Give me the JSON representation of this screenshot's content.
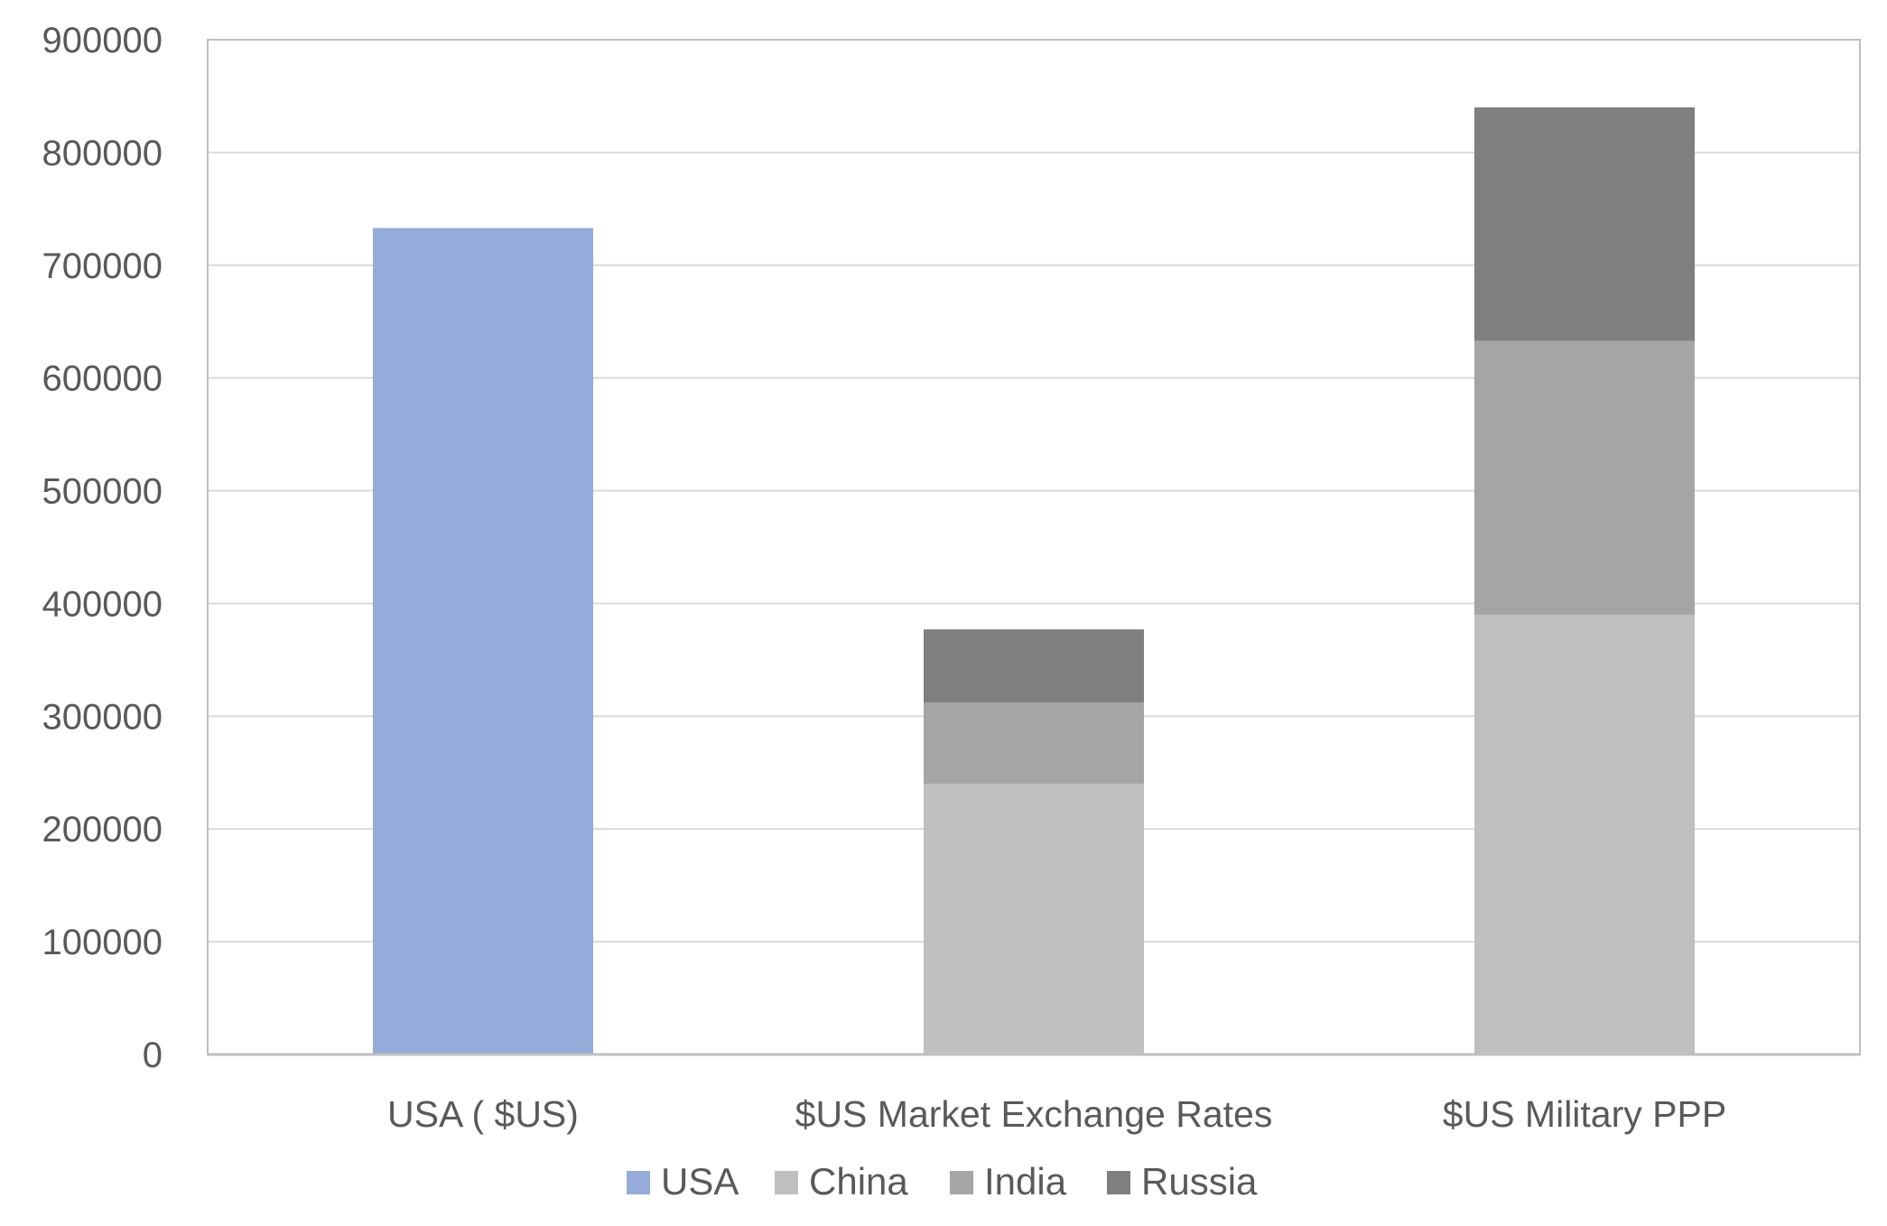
{
  "chart_data": {
    "type": "bar",
    "stacked": true,
    "categories": [
      "USA ( $US)",
      "$US Market Exchange Rates",
      "$US Military PPP"
    ],
    "series": [
      {
        "name": "USA",
        "color": "#95ABD9",
        "values": [
          733000,
          0,
          0
        ]
      },
      {
        "name": "China",
        "color": "#BFBFBF",
        "values": [
          0,
          240000,
          390000
        ]
      },
      {
        "name": "India",
        "color": "#A5A5A5",
        "values": [
          0,
          72000,
          243000
        ]
      },
      {
        "name": "Russia",
        "color": "#7F7F7F",
        "values": [
          0,
          65000,
          207000
        ]
      }
    ],
    "ylim": [
      0,
      900000
    ],
    "yticks": [
      0,
      100000,
      200000,
      300000,
      400000,
      500000,
      600000,
      700000,
      800000,
      900000
    ],
    "ytick_labels": [
      "0",
      "100000",
      "200000",
      "300000",
      "400000",
      "500000",
      "600000",
      "700000",
      "800000",
      "900000"
    ],
    "grid": true,
    "legend_position": "bottom",
    "title": "",
    "xlabel": "",
    "ylabel": ""
  }
}
